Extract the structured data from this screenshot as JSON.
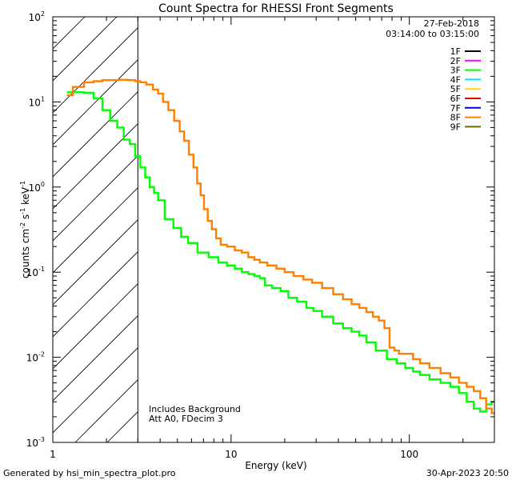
{
  "chart_data": {
    "type": "line",
    "title": "Count Spectra for RHESSI Front Segments",
    "xlabel": "Energy (keV)",
    "ylabel": "counts cm⁻² s⁻¹ keV⁻¹",
    "xscale": "log",
    "yscale": "log",
    "xlim": [
      1,
      300
    ],
    "ylim": [
      0.001,
      100
    ],
    "x_ticks": [
      {
        "value": 1,
        "label": "1"
      },
      {
        "value": 10,
        "label": "10"
      },
      {
        "value": 100,
        "label": "100"
      }
    ],
    "y_ticks": [
      {
        "value": 100,
        "base": "10",
        "exp": "2"
      },
      {
        "value": 10,
        "base": "10",
        "exp": "1"
      },
      {
        "value": 1,
        "base": "10",
        "exp": "0"
      },
      {
        "value": 0.1,
        "base": "10",
        "exp": "-1"
      },
      {
        "value": 0.01,
        "base": "10",
        "exp": "-2"
      },
      {
        "value": 0.001,
        "base": "10",
        "exp": "-3"
      }
    ],
    "date": "27-Feb-2018",
    "time_range": "03:14:00 to 03:15:00",
    "legend": [
      {
        "name": "1F",
        "color": "#000000"
      },
      {
        "name": "2F",
        "color": "#ff00ff"
      },
      {
        "name": "3F",
        "color": "#00ff00"
      },
      {
        "name": "4F",
        "color": "#00e5ff"
      },
      {
        "name": "5F",
        "color": "#ffd700"
      },
      {
        "name": "6F",
        "color": "#e00000"
      },
      {
        "name": "7F",
        "color": "#0000cc"
      },
      {
        "name": "8F",
        "color": "#ff8000"
      },
      {
        "name": "9F",
        "color": "#6b6b00"
      }
    ],
    "attenuator_cutoff_kev": 3,
    "annotations": [
      "Includes Background",
      "Att A0, FDecim 3"
    ],
    "series": [
      {
        "name": "3F",
        "color": "#00ff00",
        "points": [
          [
            1.2,
            13
          ],
          [
            1.4,
            13
          ],
          [
            1.6,
            12.8
          ],
          [
            1.8,
            11
          ],
          [
            2.0,
            8
          ],
          [
            2.2,
            6
          ],
          [
            2.4,
            5
          ],
          [
            2.6,
            3.6
          ],
          [
            2.8,
            3.2
          ],
          [
            3.0,
            2.3
          ],
          [
            3.2,
            1.7
          ],
          [
            3.4,
            1.3
          ],
          [
            3.6,
            1.0
          ],
          [
            3.8,
            0.85
          ],
          [
            4.0,
            0.7
          ],
          [
            4.5,
            0.42
          ],
          [
            5.0,
            0.33
          ],
          [
            5.5,
            0.26
          ],
          [
            6.0,
            0.22
          ],
          [
            7.0,
            0.17
          ],
          [
            8.0,
            0.15
          ],
          [
            9.0,
            0.13
          ],
          [
            10,
            0.12
          ],
          [
            11,
            0.11
          ],
          [
            12,
            0.1
          ],
          [
            13,
            0.095
          ],
          [
            14,
            0.09
          ],
          [
            15,
            0.085
          ],
          [
            16,
            0.07
          ],
          [
            18,
            0.065
          ],
          [
            20,
            0.06
          ],
          [
            22,
            0.05
          ],
          [
            25,
            0.045
          ],
          [
            28,
            0.038
          ],
          [
            30,
            0.035
          ],
          [
            35,
            0.03
          ],
          [
            40,
            0.025
          ],
          [
            45,
            0.022
          ],
          [
            50,
            0.02
          ],
          [
            55,
            0.018
          ],
          [
            60,
            0.015
          ],
          [
            70,
            0.012
          ],
          [
            80,
            0.0095
          ],
          [
            90,
            0.0085
          ],
          [
            100,
            0.0075
          ],
          [
            110,
            0.0068
          ],
          [
            120,
            0.0062
          ],
          [
            140,
            0.0055
          ],
          [
            160,
            0.005
          ],
          [
            180,
            0.0045
          ],
          [
            200,
            0.0038
          ],
          [
            220,
            0.003
          ],
          [
            240,
            0.0025
          ],
          [
            260,
            0.0023
          ],
          [
            280,
            0.0028
          ],
          [
            300,
            0.003
          ]
        ]
      },
      {
        "name": "8F",
        "color": "#ff8000",
        "points": [
          [
            1.2,
            12
          ],
          [
            1.4,
            15
          ],
          [
            1.6,
            17
          ],
          [
            1.8,
            17.5
          ],
          [
            2.0,
            18
          ],
          [
            2.2,
            18
          ],
          [
            2.5,
            18.2
          ],
          [
            2.8,
            18
          ],
          [
            3.0,
            17.5
          ],
          [
            3.2,
            17
          ],
          [
            3.5,
            16
          ],
          [
            3.8,
            14
          ],
          [
            4.0,
            12.5
          ],
          [
            4.3,
            10
          ],
          [
            4.6,
            8
          ],
          [
            5.0,
            6
          ],
          [
            5.3,
            4.5
          ],
          [
            5.6,
            3.5
          ],
          [
            6.0,
            2.4
          ],
          [
            6.3,
            1.7
          ],
          [
            6.6,
            1.1
          ],
          [
            6.9,
            0.8
          ],
          [
            7.2,
            0.55
          ],
          [
            7.6,
            0.4
          ],
          [
            8.0,
            0.32
          ],
          [
            8.5,
            0.25
          ],
          [
            9.0,
            0.21
          ],
          [
            10,
            0.2
          ],
          [
            11,
            0.18
          ],
          [
            12,
            0.17
          ],
          [
            13,
            0.15
          ],
          [
            14,
            0.14
          ],
          [
            15,
            0.13
          ],
          [
            17,
            0.12
          ],
          [
            19,
            0.11
          ],
          [
            21,
            0.1
          ],
          [
            24,
            0.09
          ],
          [
            27,
            0.082
          ],
          [
            30,
            0.075
          ],
          [
            35,
            0.065
          ],
          [
            40,
            0.055
          ],
          [
            45,
            0.048
          ],
          [
            50,
            0.042
          ],
          [
            55,
            0.038
          ],
          [
            60,
            0.034
          ],
          [
            65,
            0.03
          ],
          [
            70,
            0.027
          ],
          [
            75,
            0.022
          ],
          [
            80,
            0.013
          ],
          [
            85,
            0.012
          ],
          [
            90,
            0.011
          ],
          [
            100,
            0.011
          ],
          [
            110,
            0.0095
          ],
          [
            120,
            0.0085
          ],
          [
            140,
            0.0075
          ],
          [
            160,
            0.0065
          ],
          [
            180,
            0.0058
          ],
          [
            200,
            0.005
          ],
          [
            220,
            0.0045
          ],
          [
            240,
            0.004
          ],
          [
            260,
            0.0033
          ],
          [
            280,
            0.0025
          ],
          [
            300,
            0.0022
          ]
        ]
      }
    ]
  },
  "footer": {
    "generated_by": "Generated by hsi_min_spectra_plot.pro",
    "timestamp": "30-Apr-2023 20:50"
  }
}
